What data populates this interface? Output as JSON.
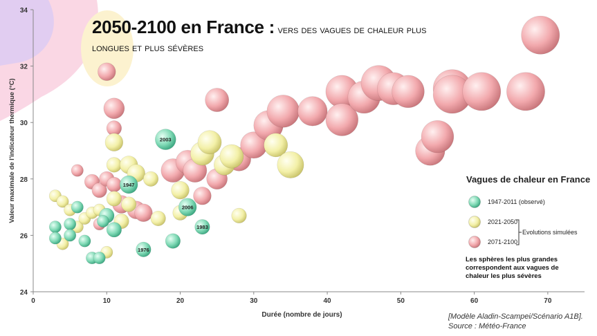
{
  "title": {
    "main": "2050-2100 en France :",
    "sub_line1": "vers des vagues de chaleur plus",
    "sub_line2": "longues et plus sévères"
  },
  "legend": {
    "title": "Vagues de chaleur en France",
    "items": [
      {
        "label": "1947-2011 (observé)",
        "color": "#7fd9b5"
      },
      {
        "label": "2021-2050",
        "color": "#f3f0a8"
      },
      {
        "label": "2071-2100",
        "color": "#f2a9ad"
      }
    ],
    "bracket_label": "Evolutions simulées",
    "note": "Les sphères les plus grandes correspondent aux vagues de chaleur les plus sévères"
  },
  "source": {
    "line1": "[Modèle Aladin-Scampei/Scénario A1B].",
    "line2": "Source : Météo-France"
  },
  "chart_data": {
    "type": "scatter",
    "xlabel": "Durée (nombre de jours)",
    "ylabel": "Valeur maximale de l'indicateur thermique (°C)",
    "xlim": [
      0,
      75
    ],
    "ylim": [
      24,
      34
    ],
    "xticks": [
      0,
      10,
      20,
      30,
      40,
      50,
      60,
      70
    ],
    "yticks": [
      24,
      26,
      28,
      30,
      32,
      34
    ],
    "grid": false,
    "legend_position": "right",
    "series": [
      {
        "name": "1947-2011 (observé)",
        "color": "#7fd9b5",
        "points": [
          {
            "x": 3,
            "y": 26.3,
            "s": 2
          },
          {
            "x": 3,
            "y": 25.9,
            "s": 2
          },
          {
            "x": 5,
            "y": 26.4,
            "s": 2
          },
          {
            "x": 5,
            "y": 26.0,
            "s": 2
          },
          {
            "x": 6,
            "y": 27.0,
            "s": 2
          },
          {
            "x": 7,
            "y": 25.8,
            "s": 2
          },
          {
            "x": 8,
            "y": 25.2,
            "s": 2
          },
          {
            "x": 9,
            "y": 25.2,
            "s": 2
          },
          {
            "x": 10,
            "y": 26.7,
            "s": 3
          },
          {
            "x": 11,
            "y": 26.2,
            "s": 3
          },
          {
            "x": 9.5,
            "y": 26.5,
            "s": 2
          },
          {
            "x": 13,
            "y": 27.8,
            "s": 4,
            "label": "1947"
          },
          {
            "x": 15,
            "y": 25.5,
            "s": 3,
            "label": "1976"
          },
          {
            "x": 18,
            "y": 29.4,
            "s": 5,
            "label": "2003"
          },
          {
            "x": 19,
            "y": 25.8,
            "s": 3
          },
          {
            "x": 21,
            "y": 27.0,
            "s": 4,
            "label": "2006"
          },
          {
            "x": 23,
            "y": 26.3,
            "s": 3,
            "label": "1983"
          }
        ]
      },
      {
        "name": "2021-2050",
        "color": "#f3f0a8",
        "points": [
          {
            "x": 3,
            "y": 27.4,
            "s": 2
          },
          {
            "x": 4,
            "y": 27.2,
            "s": 2
          },
          {
            "x": 4,
            "y": 25.7,
            "s": 2
          },
          {
            "x": 5,
            "y": 26.9,
            "s": 2
          },
          {
            "x": 6,
            "y": 26.3,
            "s": 2
          },
          {
            "x": 7,
            "y": 26.6,
            "s": 2
          },
          {
            "x": 8,
            "y": 26.8,
            "s": 2
          },
          {
            "x": 9,
            "y": 26.9,
            "s": 2
          },
          {
            "x": 10,
            "y": 25.4,
            "s": 2
          },
          {
            "x": 11,
            "y": 29.3,
            "s": 4
          },
          {
            "x": 11,
            "y": 28.5,
            "s": 3
          },
          {
            "x": 11,
            "y": 27.3,
            "s": 3
          },
          {
            "x": 12,
            "y": 26.5,
            "s": 3
          },
          {
            "x": 13,
            "y": 28.5,
            "s": 4
          },
          {
            "x": 13,
            "y": 27.1,
            "s": 3
          },
          {
            "x": 14,
            "y": 28.2,
            "s": 4
          },
          {
            "x": 16,
            "y": 28.0,
            "s": 3
          },
          {
            "x": 17,
            "y": 26.6,
            "s": 3
          },
          {
            "x": 20,
            "y": 27.6,
            "s": 4
          },
          {
            "x": 20,
            "y": 26.8,
            "s": 3
          },
          {
            "x": 23,
            "y": 28.9,
            "s": 6
          },
          {
            "x": 24,
            "y": 29.3,
            "s": 6
          },
          {
            "x": 26,
            "y": 28.5,
            "s": 5
          },
          {
            "x": 27,
            "y": 28.8,
            "s": 6
          },
          {
            "x": 28,
            "y": 26.7,
            "s": 3
          },
          {
            "x": 33,
            "y": 29.2,
            "s": 6
          },
          {
            "x": 35,
            "y": 28.5,
            "s": 7
          }
        ]
      },
      {
        "name": "2071-2100",
        "color": "#f2a9ad",
        "points": [
          {
            "x": 6,
            "y": 28.3,
            "s": 2
          },
          {
            "x": 8,
            "y": 27.9,
            "s": 3
          },
          {
            "x": 9,
            "y": 27.6,
            "s": 3
          },
          {
            "x": 9,
            "y": 26.4,
            "s": 2
          },
          {
            "x": 10,
            "y": 31.8,
            "s": 4
          },
          {
            "x": 10,
            "y": 28.0,
            "s": 3
          },
          {
            "x": 11,
            "y": 30.5,
            "s": 5
          },
          {
            "x": 11,
            "y": 29.8,
            "s": 3
          },
          {
            "x": 11,
            "y": 27.8,
            "s": 3
          },
          {
            "x": 12,
            "y": 27.1,
            "s": 4
          },
          {
            "x": 14,
            "y": 26.9,
            "s": 4
          },
          {
            "x": 15,
            "y": 26.8,
            "s": 4
          },
          {
            "x": 19,
            "y": 28.3,
            "s": 6
          },
          {
            "x": 21,
            "y": 28.6,
            "s": 6
          },
          {
            "x": 22,
            "y": 28.3,
            "s": 6
          },
          {
            "x": 23,
            "y": 27.4,
            "s": 4
          },
          {
            "x": 25,
            "y": 30.8,
            "s": 6
          },
          {
            "x": 25,
            "y": 28.0,
            "s": 5
          },
          {
            "x": 28,
            "y": 28.7,
            "s": 6
          },
          {
            "x": 30,
            "y": 29.2,
            "s": 7
          },
          {
            "x": 32,
            "y": 29.9,
            "s": 8
          },
          {
            "x": 34,
            "y": 30.4,
            "s": 9
          },
          {
            "x": 38,
            "y": 30.4,
            "s": 8
          },
          {
            "x": 42,
            "y": 31.1,
            "s": 9
          },
          {
            "x": 42,
            "y": 30.1,
            "s": 9
          },
          {
            "x": 45,
            "y": 30.9,
            "s": 9
          },
          {
            "x": 47,
            "y": 31.4,
            "s": 10
          },
          {
            "x": 49,
            "y": 31.2,
            "s": 9
          },
          {
            "x": 51,
            "y": 31.1,
            "s": 9
          },
          {
            "x": 54,
            "y": 29.0,
            "s": 8
          },
          {
            "x": 55,
            "y": 29.5,
            "s": 9
          },
          {
            "x": 57,
            "y": 31.2,
            "s": 11
          },
          {
            "x": 57,
            "y": 31.0,
            "s": 11
          },
          {
            "x": 61,
            "y": 31.1,
            "s": 11
          },
          {
            "x": 67,
            "y": 31.1,
            "s": 11
          },
          {
            "x": 69,
            "y": 33.1,
            "s": 11
          }
        ]
      }
    ]
  }
}
